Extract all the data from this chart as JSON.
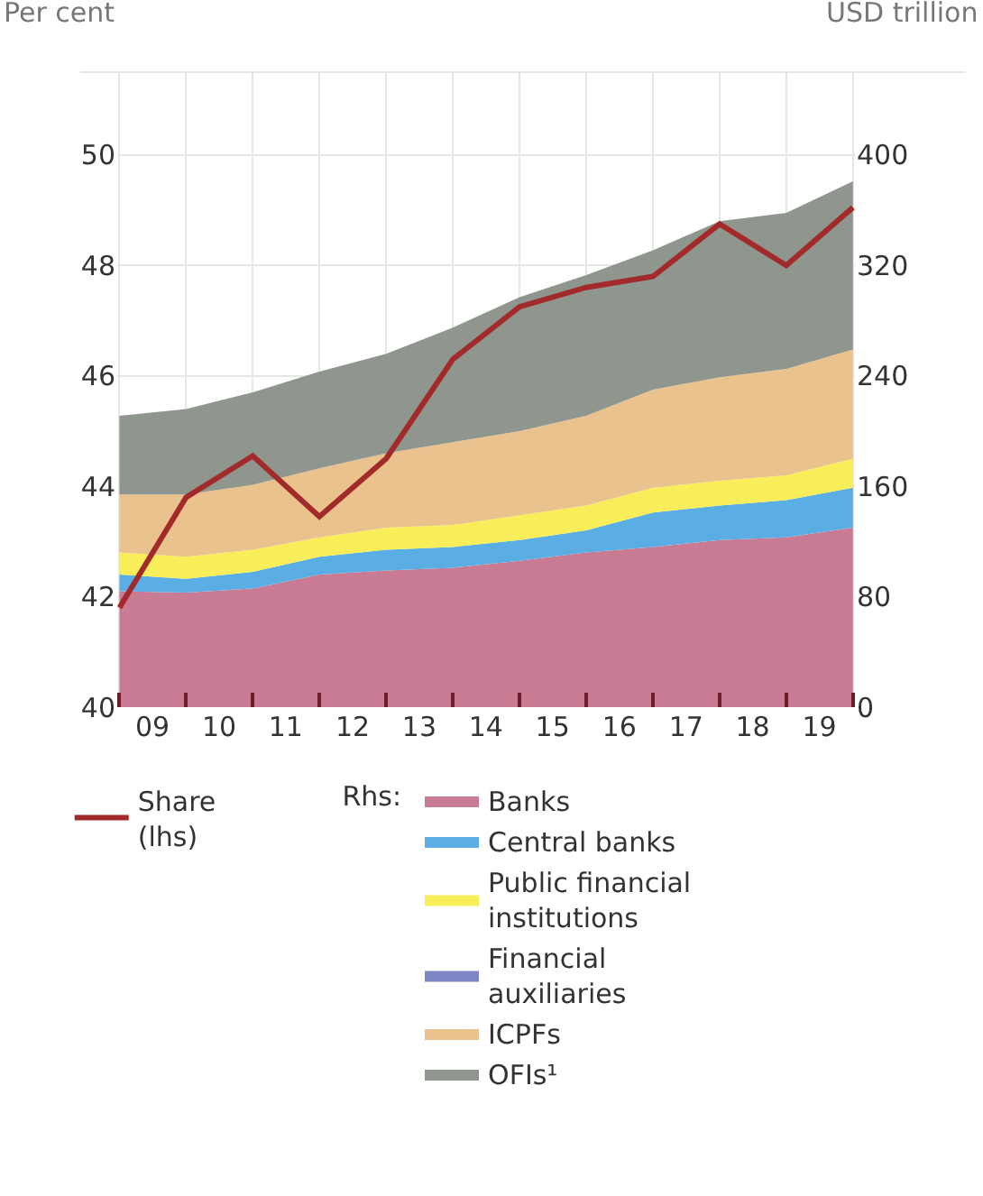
{
  "chart_data": {
    "type": "area",
    "stacked": true,
    "ylabel": "Per cent",
    "y2label": "USD trillion",
    "legend_title": "Rhs:",
    "x": [
      "2009",
      "2010",
      "2011",
      "2012",
      "2013",
      "2014",
      "2015",
      "2016",
      "2017",
      "2018",
      "2019",
      "2020"
    ],
    "series": [
      {
        "name": "Banks",
        "color": "#c97b93",
        "axis": "y2",
        "values": [
          84,
          83,
          86,
          96,
          99,
          101,
          106,
          112,
          116,
          121,
          123,
          130
        ]
      },
      {
        "name": "Central banks",
        "color": "#5aaee3",
        "axis": "y2",
        "values": [
          12,
          10,
          12,
          13,
          15,
          15,
          15,
          16,
          25,
          25,
          27,
          29
        ]
      },
      {
        "name": "Public financial\ninstitutions",
        "color": "#f7ee5a",
        "axis": "y2",
        "values": [
          16,
          16,
          16,
          14,
          16,
          16,
          18,
          18,
          18,
          18,
          18,
          21
        ]
      },
      {
        "name": "Financial\nauxiliaries",
        "color": "#7f85c4",
        "axis": "y2",
        "values": [
          null,
          null,
          null,
          null,
          null,
          null,
          null,
          null,
          null,
          null,
          null,
          null
        ]
      },
      {
        "name": "ICPFs",
        "color": "#e9c28d",
        "axis": "y2",
        "values": [
          42,
          45,
          47,
          50,
          54,
          60,
          61,
          65,
          71,
          75,
          77,
          79
        ]
      },
      {
        "name": "OFIs¹",
        "color": "#8f968e",
        "axis": "y2",
        "values": [
          57,
          62,
          67,
          70,
          72,
          83,
          97,
          102,
          101,
          113,
          113,
          122
        ]
      },
      {
        "name": "Share\n(lhs)",
        "color": "#a32a2a",
        "type": "line",
        "axis": "y",
        "values": [
          41.8,
          43.8,
          44.55,
          43.45,
          44.5,
          46.3,
          47.25,
          47.6,
          47.8,
          48.75,
          48.0,
          49.05
        ]
      }
    ],
    "xlim": [
      "2008-12-20",
      "2020-01-12"
    ],
    "xticks": [
      {
        "value": "2009",
        "label": null
      },
      {
        "value": "2010",
        "label": null
      },
      {
        "value": "2011",
        "label": null
      },
      {
        "value": "2012",
        "label": null
      },
      {
        "value": "2013",
        "label": null
      },
      {
        "value": "2014",
        "label": null
      },
      {
        "value": "2015",
        "label": null
      },
      {
        "value": "2016",
        "label": null
      },
      {
        "value": "2017",
        "label": null
      },
      {
        "value": "2018",
        "label": null
      },
      {
        "value": "2019",
        "label": null
      },
      {
        "value": "2020",
        "label": null
      },
      {
        "value": "2009-07",
        "label": "09"
      },
      {
        "value": "2010-07",
        "label": "10"
      },
      {
        "value": "2011-07",
        "label": "11"
      },
      {
        "value": "2012-07",
        "label": "12"
      },
      {
        "value": "2013-07",
        "label": "13"
      },
      {
        "value": "2014-07",
        "label": "14"
      },
      {
        "value": "2015-07",
        "label": "15"
      },
      {
        "value": "2016-07",
        "label": "16"
      },
      {
        "value": "2017-07",
        "label": "17"
      },
      {
        "value": "2018-07",
        "label": "18"
      },
      {
        "value": "2019-07",
        "label": "19"
      }
    ],
    "ylim": [
      40,
      51.5
    ],
    "yticks": [
      40,
      42,
      44,
      46,
      48,
      50
    ],
    "y2lim": [
      0,
      460
    ],
    "y2ticks": [
      0,
      80,
      160,
      240,
      320,
      400
    ],
    "grid": true,
    "legend": "bottom",
    "marker": "none",
    "line_style": "solid"
  }
}
